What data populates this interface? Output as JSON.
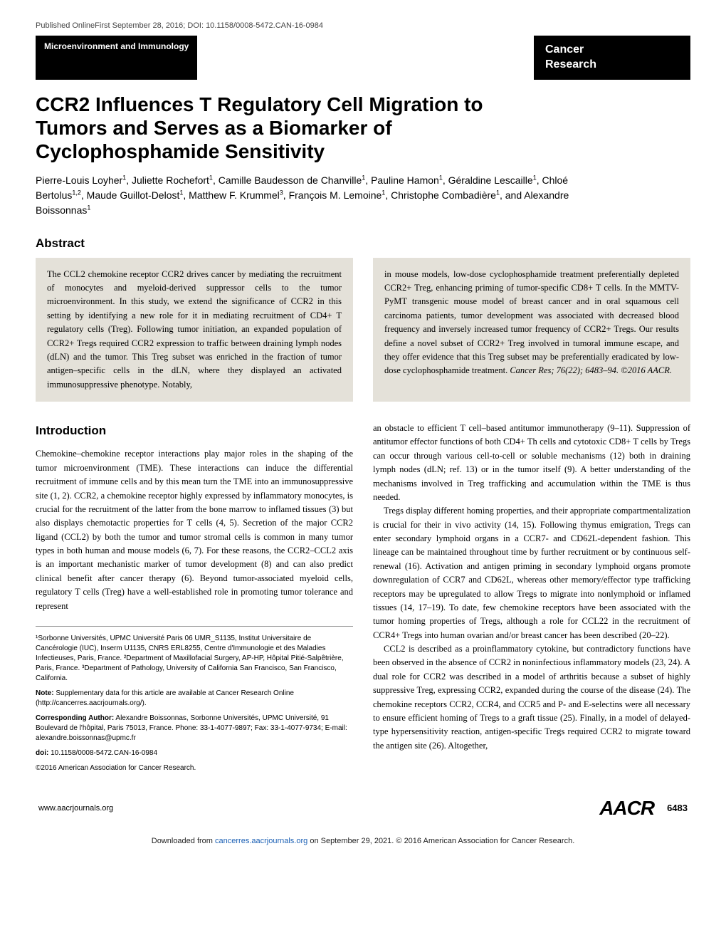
{
  "pub_line": "Published OnlineFirst September 28, 2016; DOI: 10.1158/0008-5472.CAN-16-0984",
  "banner": {
    "section": "Microenvironment and Immunology",
    "journal_line1": "Cancer",
    "journal_line2": "Research"
  },
  "title": "CCR2 Influences T Regulatory Cell Migration to Tumors and Serves as a Biomarker of Cyclophosphamide Sensitivity",
  "authors_html": "Pierre-Louis Loyher<sup>1</sup>, Juliette Rochefort<sup>1</sup>, Camille Baudesson de Chanville<sup>1</sup>, Pauline Hamon<sup>1</sup>, Géraldine Lescaille<sup>1</sup>, Chloé Bertolus<sup>1,2</sup>, Maude Guillot-Delost<sup>1</sup>, Matthew F. Krummel<sup>3</sup>, François M. Lemoine<sup>1</sup>, Christophe Combadière<sup>1</sup>, and Alexandre Boissonnas<sup>1</sup>",
  "abstract": {
    "heading": "Abstract",
    "left": "The CCL2 chemokine receptor CCR2 drives cancer by mediating the recruitment of monocytes and myeloid-derived suppressor cells to the tumor microenvironment. In this study, we extend the significance of CCR2 in this setting by identifying a new role for it in mediating recruitment of CD4+ T regulatory cells (Treg). Following tumor initiation, an expanded population of CCR2+ Tregs required CCR2 expression to traffic between draining lymph nodes (dLN) and the tumor. This Treg subset was enriched in the fraction of tumor antigen–specific cells in the dLN, where they displayed an activated immunosuppressive phenotype. Notably,",
    "right": "in mouse models, low-dose cyclophosphamide treatment preferentially depleted CCR2+ Treg, enhancing priming of tumor-specific CD8+ T cells. In the MMTV-PyMT transgenic mouse model of breast cancer and in oral squamous cell carcinoma patients, tumor development was associated with decreased blood frequency and inversely increased tumor frequency of CCR2+ Tregs. Our results define a novel subset of CCR2+ Treg involved in tumoral immune escape, and they offer evidence that this Treg subset may be preferentially eradicated by low-dose cyclophosphamide treatment.",
    "citation": "Cancer Res; 76(22); 6483–94. ©2016 AACR."
  },
  "intro": {
    "heading": "Introduction",
    "p1": "Chemokine–chemokine receptor interactions play major roles in the shaping of the tumor microenvironment (TME). These interactions can induce the differential recruitment of immune cells and by this mean turn the TME into an immunosuppressive site (1, 2). CCR2, a chemokine receptor highly expressed by inflammatory monocytes, is crucial for the recruitment of the latter from the bone marrow to inflamed tissues (3) but also displays chemotactic properties for T cells (4, 5). Secretion of the major CCR2 ligand (CCL2) by both the tumor and tumor stromal cells is common in many tumor types in both human and mouse models (6, 7). For these reasons, the CCR2–CCL2 axis is an important mechanistic marker of tumor development (8) and can also predict clinical benefit after cancer therapy (6). Beyond tumor-associated myeloid cells, regulatory T cells (Treg) have a well-established role in promoting tumor tolerance and represent",
    "p2": "an obstacle to efficient T cell–based antitumor immunotherapy (9–11). Suppression of antitumor effector functions of both CD4+ Th cells and cytotoxic CD8+ T cells by Tregs can occur through various cell-to-cell or soluble mechanisms (12) both in draining lymph nodes (dLN; ref. 13) or in the tumor itself (9). A better understanding of the mechanisms involved in Treg trafficking and accumulation within the TME is thus needed.",
    "p3": "Tregs display different homing properties, and their appropriate compartmentalization is crucial for their in vivo activity (14, 15). Following thymus emigration, Tregs can enter secondary lymphoid organs in a CCR7- and CD62L-dependent fashion. This lineage can be maintained throughout time by further recruitment or by continuous self-renewal (16). Activation and antigen priming in secondary lymphoid organs promote downregulation of CCR7 and CD62L, whereas other memory/effector type trafficking receptors may be upregulated to allow Tregs to migrate into nonlymphoid or inflamed tissues (14, 17–19). To date, few chemokine receptors have been associated with the tumor homing properties of Tregs, although a role for CCL22 in the recruitment of CCR4+ Tregs into human ovarian and/or breast cancer has been described (20–22).",
    "p4": "CCL2 is described as a proinflammatory cytokine, but contradictory functions have been observed in the absence of CCR2 in noninfectious inflammatory models (23, 24). A dual role for CCR2 was described in a model of arthritis because a subset of highly suppressive Treg, expressing CCR2, expanded during the course of the disease (24). The chemokine receptors CCR2, CCR4, and CCR5 and P- and E-selectins were all necessary to ensure efficient homing of Tregs to a graft tissue (25). Finally, in a model of delayed-type hypersensitivity reaction, antigen-specific Tregs required CCR2 to migrate toward the antigen site (26). Altogether,"
  },
  "affiliations": {
    "a1": "¹Sorbonne Universités, UPMC Université Paris 06 UMR_S1135, Institut Universitaire de Cancérologie (IUC), Inserm U1135, CNRS ERL8255, Centre d'Immunologie et des Maladies Infectieuses, Paris, France. ²Department of Maxillofacial Surgery, AP-HP, Hôpital Pitié-Salpêtrière, Paris, France. ³Department of Pathology, University of California San Francisco, San Francisco, California.",
    "note_label": "Note:",
    "note_text": " Supplementary data for this article are available at Cancer Research Online (http://cancerres.aacrjournals.org/).",
    "corr_label": "Corresponding Author:",
    "corr_text": " Alexandre Boissonnas, Sorbonne Universités, UPMC Université, 91 Boulevard de l'hôpital, Paris 75013, France. Phone: 33-1-4077-9897; Fax: 33-1-4077-9734; E-mail: alexandre.boissonnas@upmc.fr",
    "doi_label": "doi:",
    "doi_text": " 10.1158/0008-5472.CAN-16-0984",
    "copyright": "©2016 American Association for Cancer Research."
  },
  "footer": {
    "url": "www.aacrjournals.org",
    "logo": "AACR",
    "page": "6483"
  },
  "download_prefix": "Downloaded from ",
  "download_link": "cancerres.aacrjournals.org",
  "download_suffix": " on September 29, 2021. © 2016 American Association for Cancer Research."
}
